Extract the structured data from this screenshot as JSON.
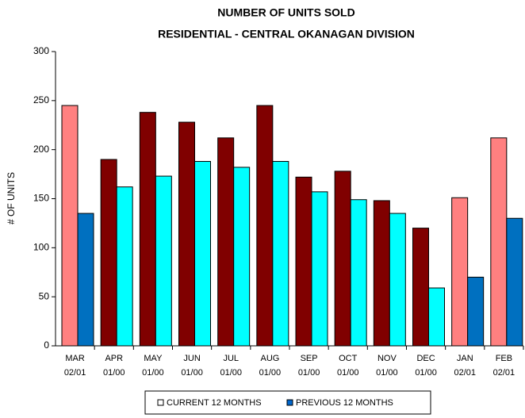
{
  "chart_data": {
    "type": "bar",
    "title": [
      "NUMBER OF UNITS SOLD",
      "RESIDENTIAL - CENTRAL OKANAGAN DIVISION"
    ],
    "y_label": "# OF UNITS",
    "categories": [
      [
        "MAR",
        "02/01"
      ],
      [
        "APR",
        "01/00"
      ],
      [
        "MAY",
        "01/00"
      ],
      [
        "JUN",
        "01/00"
      ],
      [
        "JUL",
        "01/00"
      ],
      [
        "AUG",
        "01/00"
      ],
      [
        "SEP",
        "01/00"
      ],
      [
        "OCT",
        "01/00"
      ],
      [
        "NOV",
        "01/00"
      ],
      [
        "DEC",
        "01/00"
      ],
      [
        "JAN",
        "02/01"
      ],
      [
        "FEB",
        "02/01"
      ]
    ],
    "series": [
      {
        "name": "CURRENT 12 MONTHS",
        "color": "#ffffff",
        "colors": [
          "#ff8080",
          "#800000",
          "#800000",
          "#800000",
          "#800000",
          "#800000",
          "#800000",
          "#800000",
          "#800000",
          "#800000",
          "#ff8080",
          "#ff8080"
        ],
        "values": [
          245,
          190,
          238,
          228,
          212,
          245,
          172,
          178,
          148,
          120,
          151,
          212
        ]
      },
      {
        "name": "PREVIOUS 12 MONTHS",
        "color": "#0066cc",
        "colors": [
          "#0070c0",
          "#00ffff",
          "#00ffff",
          "#00ffff",
          "#00ffff",
          "#00ffff",
          "#00ffff",
          "#00ffff",
          "#00ffff",
          "#00ffff",
          "#0070c0",
          "#0070c0"
        ],
        "values": [
          135,
          162,
          173,
          188,
          182,
          188,
          157,
          149,
          135,
          59,
          70,
          130
        ]
      }
    ],
    "ylim": [
      0,
      300
    ],
    "yticks": [
      0,
      50,
      100,
      150,
      200,
      250,
      300
    ],
    "grid": false,
    "legend": "bottom"
  }
}
